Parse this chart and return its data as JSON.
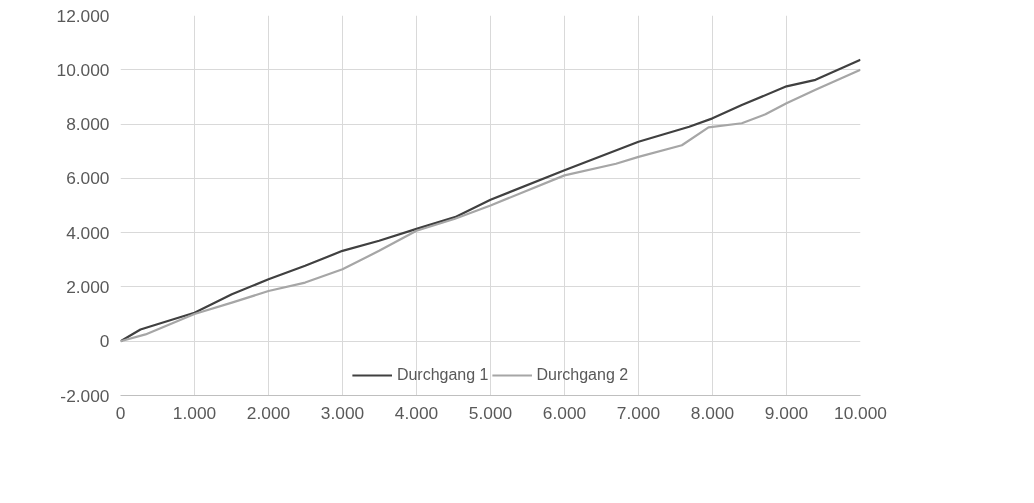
{
  "chart_data": {
    "type": "line",
    "xlim": [
      0,
      10000
    ],
    "ylim": [
      -2000,
      12000
    ],
    "xticks": [
      {
        "value": 0,
        "label": "0"
      },
      {
        "value": 1000,
        "label": "1.000"
      },
      {
        "value": 2000,
        "label": "2.000"
      },
      {
        "value": 3000,
        "label": "3.000"
      },
      {
        "value": 4000,
        "label": "4.000"
      },
      {
        "value": 5000,
        "label": "5.000"
      },
      {
        "value": 6000,
        "label": "6.000"
      },
      {
        "value": 7000,
        "label": "7.000"
      },
      {
        "value": 8000,
        "label": "8.000"
      },
      {
        "value": 9000,
        "label": "9.000"
      },
      {
        "value": 10000,
        "label": "10.000"
      }
    ],
    "yticks": [
      {
        "value": -2000,
        "label": "-2.000"
      },
      {
        "value": 0,
        "label": "0"
      },
      {
        "value": 2000,
        "label": "2.000"
      },
      {
        "value": 4000,
        "label": "4.000"
      },
      {
        "value": 6000,
        "label": "6.000"
      },
      {
        "value": 8000,
        "label": "8.000"
      },
      {
        "value": 10000,
        "label": "10.000"
      },
      {
        "value": 12000,
        "label": "12.000"
      }
    ],
    "grid": true,
    "legend": "bottom",
    "marker": "none",
    "line_style": "solid",
    "series": [
      {
        "name": "Durchgang 1",
        "color": "#404040",
        "x": [
          0,
          270,
          563,
          1000,
          1505,
          2000,
          2495,
          3000,
          3495,
          4000,
          4520,
          5000,
          6000,
          7000,
          7685,
          8000,
          8396,
          9000,
          9392,
          10000
        ],
        "values": [
          0,
          430,
          680,
          1050,
          1730,
          2280,
          2780,
          3330,
          3700,
          4140,
          4570,
          5210,
          6300,
          7350,
          7900,
          8210,
          8700,
          9390,
          9630,
          10370
        ]
      },
      {
        "name": "Durchgang 2",
        "color": "#a6a6a6",
        "x": [
          0,
          338,
          1000,
          1505,
          2000,
          2495,
          3000,
          3495,
          4000,
          4520,
          5000,
          6000,
          6696,
          7000,
          7586,
          7946,
          8396,
          8716,
          9000,
          9392,
          10000
        ],
        "values": [
          0,
          250,
          1000,
          1420,
          1850,
          2160,
          2650,
          3330,
          4070,
          4510,
          5000,
          6110,
          6540,
          6790,
          7220,
          7880,
          8030,
          8360,
          8770,
          9260,
          10000
        ]
      }
    ]
  }
}
